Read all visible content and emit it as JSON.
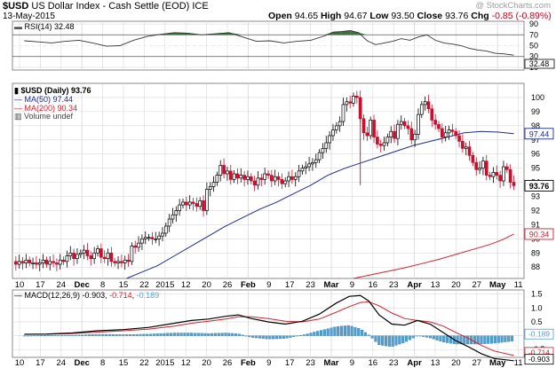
{
  "header": {
    "symbol": "$USD",
    "name": "US Dollar Index - Cash Settle (EOD)",
    "exchange": "ICE",
    "date": "13-May-2015",
    "credit": "@ StockCharts.com",
    "open_label": "Open",
    "open": "94.65",
    "high_label": "High",
    "high": "94.67",
    "low_label": "Low",
    "low": "93.50",
    "close_label": "Close",
    "close": "93.76",
    "chg_label": "Chg",
    "chg": "-0.85 (-0.89%)"
  },
  "colors": {
    "up": "#000000",
    "down": "#c8102e",
    "ma50": "#1f2a8c",
    "ma200": "#d0202e",
    "rsi_fill": "#3f6e3f",
    "macd_hist": "#4fa0d0",
    "grid": "#d9d9d9"
  },
  "x_axis_labels": [
    "10",
    "17",
    "24",
    "Dec",
    "8",
    "15",
    "22",
    "2015",
    "12",
    "20",
    "26",
    "Feb",
    "9",
    "17",
    "23",
    "Mar",
    "9",
    "16",
    "23",
    "Apr",
    "13",
    "20",
    "27",
    "May",
    "11"
  ],
  "rsi_panel": {
    "legend": "RSI(14) 32.48",
    "ticks": [
      "90",
      "70",
      "50",
      "30",
      "10"
    ],
    "last_value": "32.48",
    "levels": [
      70,
      30
    ]
  },
  "price_panel": {
    "legend_main": "$USD (Daily) 93.76",
    "legend_ma50": "MA(50) 97.44",
    "legend_ma200": "MA(200) 90.34",
    "legend_volume": "Volume undef",
    "ticks": [
      "100",
      "99",
      "98",
      "97",
      "96",
      "95",
      "94",
      "93",
      "92",
      "91",
      "90",
      "89",
      "88"
    ],
    "tags": {
      "ma50": "97.44",
      "close": "93.76",
      "ma200": "90.34"
    }
  },
  "macd_panel": {
    "legend_label": "MACD(12,26,9)",
    "legend_macd": "-0.903",
    "legend_signal": "-0.714",
    "legend_hist": "-0.189",
    "ticks": [
      "1.5",
      "1.0",
      "0.5",
      "0.0",
      "-0.5"
    ],
    "tags": {
      "hist": "-0.189",
      "signal": "-0.714",
      "macd": "-0.903"
    }
  },
  "chart_data": {
    "type": "line",
    "title": "$USD US Dollar Index - Cash Settle (EOD) ICE",
    "price": {
      "type": "candlestick",
      "ylim": [
        87.2,
        101
      ],
      "close_points": [
        [
          0,
          88.4
        ],
        [
          4,
          88.2
        ],
        [
          8,
          88.4
        ],
        [
          12,
          88.3
        ],
        [
          16,
          88.5
        ],
        [
          20,
          88.3
        ],
        [
          24,
          88.3
        ],
        [
          28,
          88.2
        ],
        [
          32,
          88.3
        ],
        [
          36,
          88.5
        ],
        [
          40,
          88.2
        ],
        [
          44,
          88.4
        ],
        [
          48,
          88.3
        ],
        [
          52,
          88.2
        ],
        [
          56,
          88.5
        ],
        [
          60,
          88.4
        ],
        [
          64,
          88.8
        ],
        [
          68,
          89.0
        ],
        [
          72,
          88.6
        ],
        [
          76,
          88.9
        ],
        [
          80,
          89.0
        ],
        [
          84,
          89.2
        ],
        [
          88,
          88.8
        ],
        [
          92,
          88.6
        ],
        [
          96,
          89.0
        ],
        [
          100,
          89.3
        ],
        [
          104,
          88.7
        ],
        [
          108,
          88.6
        ],
        [
          112,
          89.0
        ],
        [
          116,
          88.4
        ],
        [
          120,
          88.3
        ],
        [
          124,
          88.4
        ],
        [
          128,
          88.3
        ],
        [
          132,
          88.5
        ],
        [
          136,
          88.4
        ],
        [
          140,
          89.5
        ],
        [
          144,
          89.4
        ],
        [
          148,
          89.7
        ],
        [
          152,
          90.0
        ],
        [
          156,
          90.1
        ],
        [
          160,
          90.1
        ],
        [
          164,
          90.0
        ],
        [
          168,
          90.0
        ],
        [
          172,
          90.2
        ],
        [
          176,
          90.4
        ],
        [
          180,
          90.9
        ],
        [
          184,
          91.4
        ],
        [
          188,
          91.7
        ],
        [
          192,
          92.0
        ],
        [
          196,
          92.4
        ],
        [
          200,
          92.6
        ],
        [
          204,
          92.4
        ],
        [
          208,
          92.6
        ],
        [
          212,
          92.5
        ],
        [
          216,
          92.3
        ],
        [
          220,
          92.7
        ],
        [
          224,
          92.0
        ],
        [
          228,
          93.5
        ],
        [
          232,
          93.7
        ],
        [
          236,
          94.0
        ],
        [
          240,
          94.5
        ],
        [
          244,
          95.2
        ],
        [
          248,
          94.6
        ],
        [
          252,
          94.8
        ],
        [
          256,
          94.2
        ],
        [
          260,
          94.6
        ],
        [
          264,
          94.3
        ],
        [
          268,
          94.5
        ],
        [
          272,
          94.2
        ],
        [
          276,
          94.4
        ],
        [
          280,
          94.1
        ],
        [
          284,
          93.8
        ],
        [
          288,
          94.3
        ],
        [
          292,
          94.2
        ],
        [
          296,
          94.6
        ],
        [
          300,
          94.5
        ],
        [
          304,
          94.1
        ],
        [
          308,
          94.4
        ],
        [
          312,
          94.2
        ],
        [
          316,
          93.9
        ],
        [
          320,
          94.1
        ],
        [
          324,
          94.4
        ],
        [
          328,
          94.2
        ],
        [
          332,
          94.4
        ],
        [
          336,
          94.8
        ],
        [
          340,
          95.0
        ],
        [
          344,
          95.1
        ],
        [
          348,
          95.3
        ],
        [
          352,
          95.4
        ],
        [
          356,
          95.6
        ],
        [
          360,
          96.1
        ],
        [
          364,
          96.4
        ],
        [
          368,
          96.8
        ],
        [
          372,
          97.3
        ],
        [
          376,
          97.7
        ],
        [
          380,
          98.0
        ],
        [
          384,
          98.3
        ],
        [
          388,
          99.5
        ],
        [
          392,
          99.7
        ],
        [
          396,
          99.6
        ],
        [
          400,
          100.1
        ],
        [
          404,
          100.0
        ],
        [
          408,
          98.5
        ],
        [
          412,
          97.5
        ],
        [
          416,
          97.3
        ],
        [
          420,
          98.4
        ],
        [
          424,
          97.2
        ],
        [
          428,
          96.7
        ],
        [
          432,
          96.6
        ],
        [
          436,
          96.8
        ],
        [
          440,
          97.2
        ],
        [
          444,
          97.6
        ],
        [
          448,
          97.1
        ],
        [
          452,
          98.1
        ],
        [
          456,
          98.3
        ],
        [
          460,
          98.0
        ],
        [
          464,
          97.8
        ],
        [
          468,
          97.0
        ],
        [
          472,
          97.4
        ],
        [
          476,
          98.8
        ],
        [
          480,
          99.5
        ],
        [
          484,
          99.7
        ],
        [
          488,
          99.2
        ],
        [
          492,
          98.4
        ],
        [
          496,
          98.1
        ],
        [
          500,
          97.8
        ],
        [
          504,
          97.2
        ],
        [
          508,
          97.5
        ],
        [
          512,
          97.7
        ],
        [
          516,
          97.6
        ],
        [
          520,
          97.3
        ],
        [
          524,
          96.9
        ],
        [
          528,
          96.4
        ],
        [
          532,
          96.5
        ],
        [
          536,
          95.9
        ],
        [
          540,
          95.4
        ],
        [
          544,
          94.9
        ],
        [
          548,
          95.0
        ],
        [
          552,
          95.5
        ],
        [
          556,
          94.5
        ],
        [
          560,
          94.4
        ],
        [
          564,
          94.7
        ],
        [
          568,
          94.5
        ],
        [
          572,
          94.1
        ],
        [
          576,
          95.1
        ],
        [
          580,
          94.9
        ],
        [
          584,
          94.0
        ],
        [
          588,
          93.76
        ]
      ],
      "ma50": {
        "name": "MA(50)",
        "last": 97.44,
        "points": [
          [
            134,
            87.2
          ],
          [
            150,
            87.6
          ],
          [
            170,
            88.1
          ],
          [
            190,
            88.8
          ],
          [
            210,
            89.5
          ],
          [
            230,
            90.2
          ],
          [
            250,
            90.9
          ],
          [
            270,
            91.5
          ],
          [
            290,
            92.1
          ],
          [
            310,
            92.6
          ],
          [
            330,
            93.2
          ],
          [
            350,
            93.8
          ],
          [
            370,
            94.5
          ],
          [
            390,
            95.0
          ],
          [
            410,
            95.4
          ],
          [
            430,
            95.8
          ],
          [
            450,
            96.2
          ],
          [
            470,
            96.6
          ],
          [
            490,
            96.9
          ],
          [
            510,
            97.2
          ],
          [
            530,
            97.5
          ],
          [
            550,
            97.6
          ],
          [
            570,
            97.55
          ],
          [
            588,
            97.44
          ]
        ]
      },
      "ma200": {
        "name": "MA(200)",
        "last": 90.34,
        "points": [
          [
            400,
            87.2
          ],
          [
            420,
            87.45
          ],
          [
            440,
            87.7
          ],
          [
            460,
            87.95
          ],
          [
            480,
            88.25
          ],
          [
            500,
            88.55
          ],
          [
            520,
            88.9
          ],
          [
            540,
            89.25
          ],
          [
            560,
            89.6
          ],
          [
            575,
            89.95
          ],
          [
            588,
            90.34
          ]
        ]
      }
    },
    "rsi": {
      "name": "RSI(14)",
      "last": 32.48,
      "ylim": [
        5,
        95
      ],
      "points": [
        [
          14,
          59
        ],
        [
          30,
          57
        ],
        [
          46,
          55
        ],
        [
          62,
          58
        ],
        [
          78,
          60
        ],
        [
          94,
          55
        ],
        [
          110,
          49
        ],
        [
          126,
          50
        ],
        [
          142,
          60
        ],
        [
          158,
          67
        ],
        [
          174,
          71
        ],
        [
          190,
          74
        ],
        [
          206,
          73
        ],
        [
          222,
          70
        ],
        [
          238,
          72
        ],
        [
          254,
          74
        ],
        [
          270,
          66
        ],
        [
          286,
          58
        ],
        [
          302,
          59
        ],
        [
          318,
          55
        ],
        [
          334,
          58
        ],
        [
          350,
          60
        ],
        [
          366,
          68
        ],
        [
          376,
          75
        ],
        [
          386,
          76
        ],
        [
          396,
          78
        ],
        [
          406,
          74
        ],
        [
          416,
          59
        ],
        [
          426,
          52
        ],
        [
          436,
          55
        ],
        [
          446,
          58
        ],
        [
          456,
          63
        ],
        [
          466,
          60
        ],
        [
          476,
          66
        ],
        [
          486,
          70
        ],
        [
          496,
          60
        ],
        [
          506,
          55
        ],
        [
          516,
          53
        ],
        [
          526,
          50
        ],
        [
          536,
          45
        ],
        [
          546,
          42
        ],
        [
          556,
          40
        ],
        [
          566,
          36
        ],
        [
          576,
          35
        ],
        [
          588,
          32.48
        ]
      ]
    },
    "macd": {
      "name": "MACD(12,26,9)",
      "macd_last": -0.903,
      "signal_last": -0.714,
      "hist_last": -0.189,
      "ylim": [
        -0.78,
        1.65
      ],
      "macd_points": [
        [
          14,
          0.05
        ],
        [
          40,
          0.06
        ],
        [
          70,
          0.1
        ],
        [
          100,
          0.18
        ],
        [
          130,
          0.22
        ],
        [
          160,
          0.3
        ],
        [
          190,
          0.45
        ],
        [
          210,
          0.55
        ],
        [
          230,
          0.6
        ],
        [
          250,
          0.7
        ],
        [
          265,
          0.75
        ],
        [
          280,
          0.62
        ],
        [
          300,
          0.5
        ],
        [
          320,
          0.42
        ],
        [
          340,
          0.52
        ],
        [
          360,
          0.78
        ],
        [
          380,
          1.18
        ],
        [
          395,
          1.42
        ],
        [
          408,
          1.45
        ],
        [
          418,
          1.25
        ],
        [
          430,
          0.75
        ],
        [
          445,
          0.42
        ],
        [
          460,
          0.38
        ],
        [
          475,
          0.55
        ],
        [
          490,
          0.42
        ],
        [
          505,
          0.12
        ],
        [
          520,
          -0.18
        ],
        [
          535,
          -0.4
        ],
        [
          550,
          -0.65
        ],
        [
          565,
          -0.82
        ],
        [
          588,
          -0.903
        ]
      ],
      "signal_points": [
        [
          14,
          0.05
        ],
        [
          40,
          0.05
        ],
        [
          70,
          0.08
        ],
        [
          100,
          0.13
        ],
        [
          130,
          0.18
        ],
        [
          160,
          0.24
        ],
        [
          190,
          0.35
        ],
        [
          210,
          0.45
        ],
        [
          230,
          0.52
        ],
        [
          250,
          0.6
        ],
        [
          265,
          0.68
        ],
        [
          280,
          0.68
        ],
        [
          300,
          0.62
        ],
        [
          320,
          0.52
        ],
        [
          340,
          0.5
        ],
        [
          360,
          0.6
        ],
        [
          380,
          0.85
        ],
        [
          395,
          1.05
        ],
        [
          408,
          1.2
        ],
        [
          418,
          1.22
        ],
        [
          430,
          1.08
        ],
        [
          445,
          0.82
        ],
        [
          460,
          0.62
        ],
        [
          475,
          0.55
        ],
        [
          490,
          0.5
        ],
        [
          505,
          0.35
        ],
        [
          520,
          0.12
        ],
        [
          535,
          -0.1
        ],
        [
          550,
          -0.35
        ],
        [
          565,
          -0.55
        ],
        [
          588,
          -0.714
        ]
      ]
    }
  }
}
